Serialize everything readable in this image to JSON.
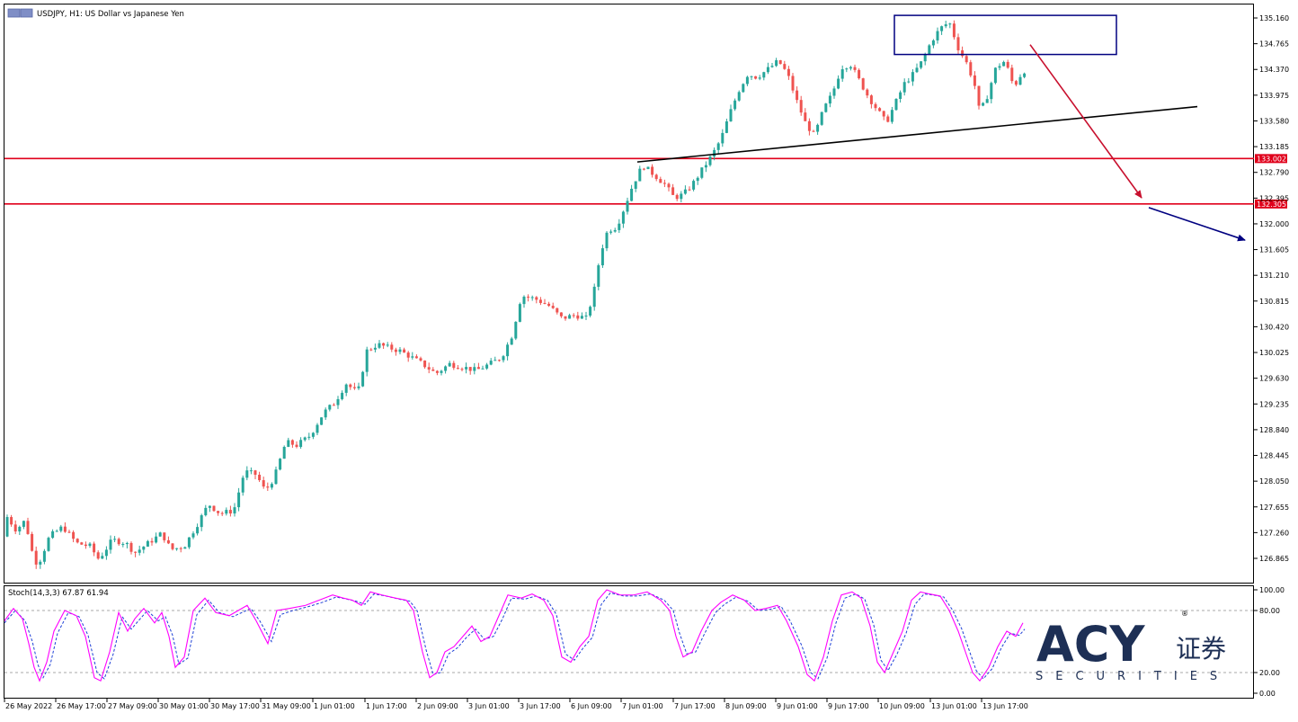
{
  "window": {
    "symbol_title": "USDJPY, H1:  US Dollar vs Japanese Yen",
    "indicator_title": "Stoch(14,3,3) 67.87 61.94"
  },
  "colors": {
    "bull": "#26a69a",
    "bear": "#ef5350",
    "level_line": "#e0001b",
    "trendline": "#000000",
    "box": "#000080",
    "arrow_down": "#c8102e",
    "arrow_right": "#000080",
    "stoch_main": "#ff00ff",
    "stoch_signal": "#1d3fd6",
    "logo": "#1d2f55"
  },
  "price_axis": {
    "labels": [
      "135.160",
      "134.765",
      "134.370",
      "133.975",
      "133.580",
      "133.185",
      "132.790",
      "132.395",
      "132.000",
      "131.605",
      "131.210",
      "130.815",
      "130.420",
      "130.025",
      "129.630",
      "129.235",
      "128.840",
      "128.445",
      "128.050",
      "127.655",
      "127.260",
      "126.865"
    ],
    "level_badges": [
      "133.002",
      "132.305"
    ]
  },
  "stoch_axis": {
    "labels": [
      "100.00",
      "80.00",
      "20.00",
      "0.00"
    ]
  },
  "time_axis": {
    "labels": [
      "26 May 2022",
      "26 May 17:00",
      "27 May 09:00",
      "30 May 01:00",
      "30 May 17:00",
      "31 May 09:00",
      "1 Jun 01:00",
      "1 Jun 17:00",
      "2 Jun 09:00",
      "3 Jun 01:00",
      "3 Jun 17:00",
      "6 Jun 09:00",
      "7 Jun 01:00",
      "7 Jun 17:00",
      "8 Jun 09:00",
      "9 Jun 01:00",
      "9 Jun 17:00",
      "10 Jun 09:00",
      "13 Jun 01:00",
      "13 Jun 17:00"
    ]
  },
  "logo": {
    "brand": "ACY",
    "cn": "证券",
    "sub": "SECURITIES",
    "reg": "®"
  },
  "chart_data": {
    "type": "candlestick",
    "symbol": "USDJPY",
    "timeframe": "H1",
    "title": "USDJPY, H1:  US Dollar vs Japanese Yen",
    "ylim": [
      126.6,
      135.3
    ],
    "y_ticks": [
      135.16,
      134.765,
      134.37,
      133.975,
      133.58,
      133.185,
      132.79,
      132.395,
      132.0,
      131.605,
      131.21,
      130.815,
      130.42,
      130.025,
      129.63,
      129.235,
      128.84,
      128.445,
      128.05,
      127.655,
      127.26,
      126.865
    ],
    "horizontal_levels": [
      133.002,
      132.305
    ],
    "price_path": [
      [
        0,
        127.2
      ],
      [
        8,
        127.5
      ],
      [
        18,
        127.3
      ],
      [
        28,
        127.45
      ],
      [
        36,
        126.95
      ],
      [
        42,
        126.75
      ],
      [
        55,
        127.2
      ],
      [
        70,
        127.35
      ],
      [
        85,
        127.1
      ],
      [
        100,
        127.05
      ],
      [
        110,
        126.85
      ],
      [
        125,
        127.15
      ],
      [
        140,
        127.1
      ],
      [
        150,
        126.95
      ],
      [
        165,
        127.1
      ],
      [
        180,
        127.25
      ],
      [
        190,
        127.0
      ],
      [
        205,
        127.05
      ],
      [
        220,
        127.4
      ],
      [
        232,
        127.7
      ],
      [
        245,
        127.55
      ],
      [
        260,
        127.6
      ],
      [
        272,
        128.2
      ],
      [
        285,
        128.15
      ],
      [
        295,
        127.9
      ],
      [
        305,
        128.1
      ],
      [
        318,
        128.65
      ],
      [
        330,
        128.6
      ],
      [
        345,
        128.75
      ],
      [
        360,
        129.1
      ],
      [
        372,
        129.25
      ],
      [
        385,
        129.55
      ],
      [
        398,
        129.4
      ],
      [
        408,
        130.05
      ],
      [
        420,
        130.15
      ],
      [
        432,
        130.1
      ],
      [
        445,
        130.05
      ],
      [
        458,
        129.95
      ],
      [
        470,
        129.85
      ],
      [
        485,
        129.7
      ],
      [
        500,
        129.85
      ],
      [
        515,
        129.8
      ],
      [
        530,
        129.75
      ],
      [
        545,
        129.85
      ],
      [
        558,
        129.95
      ],
      [
        570,
        130.3
      ],
      [
        580,
        130.9
      ],
      [
        595,
        130.85
      ],
      [
        610,
        130.75
      ],
      [
        625,
        130.55
      ],
      [
        640,
        130.6
      ],
      [
        652,
        130.55
      ],
      [
        660,
        130.9
      ],
      [
        668,
        131.55
      ],
      [
        676,
        131.9
      ],
      [
        686,
        131.95
      ],
      [
        696,
        132.3
      ],
      [
        704,
        132.6
      ],
      [
        715,
        132.9
      ],
      [
        728,
        132.75
      ],
      [
        740,
        132.6
      ],
      [
        750,
        132.4
      ],
      [
        760,
        132.45
      ],
      [
        770,
        132.6
      ],
      [
        782,
        132.85
      ],
      [
        792,
        133.05
      ],
      [
        802,
        133.3
      ],
      [
        812,
        133.7
      ],
      [
        822,
        134.05
      ],
      [
        832,
        134.3
      ],
      [
        842,
        134.25
      ],
      [
        852,
        134.35
      ],
      [
        866,
        134.5
      ],
      [
        876,
        134.3
      ],
      [
        886,
        133.9
      ],
      [
        896,
        133.55
      ],
      [
        906,
        133.35
      ],
      [
        916,
        133.75
      ],
      [
        926,
        134.0
      ],
      [
        936,
        134.4
      ],
      [
        946,
        134.45
      ],
      [
        956,
        134.2
      ],
      [
        966,
        133.95
      ],
      [
        976,
        133.75
      ],
      [
        986,
        133.55
      ],
      [
        996,
        133.85
      ],
      [
        1006,
        134.15
      ],
      [
        1016,
        134.3
      ],
      [
        1026,
        134.5
      ],
      [
        1036,
        134.8
      ],
      [
        1046,
        135.0
      ],
      [
        1056,
        135.1
      ],
      [
        1066,
        134.7
      ],
      [
        1076,
        134.45
      ],
      [
        1084,
        134.15
      ],
      [
        1090,
        133.7
      ],
      [
        1098,
        133.95
      ],
      [
        1108,
        134.4
      ],
      [
        1118,
        134.5
      ],
      [
        1128,
        134.1
      ],
      [
        1138,
        134.35
      ]
    ],
    "annotations": [
      {
        "type": "trendline",
        "from": [
          709,
          132.95
        ],
        "to": [
          1332,
          133.8
        ]
      },
      {
        "type": "box",
        "x": [
          995,
          1242
        ],
        "y": [
          134.6,
          135.2
        ]
      },
      {
        "type": "arrow",
        "direction": "down-right",
        "from": [
          1146,
          134.75
        ],
        "to": [
          1270,
          132.4
        ]
      },
      {
        "type": "arrow",
        "direction": "right",
        "from": [
          1278,
          132.25
        ],
        "to": [
          1385,
          131.75
        ]
      }
    ],
    "indicator": {
      "name": "Stoch(14,3,3)",
      "main": 67.87,
      "signal": 61.94,
      "ylim": [
        0,
        100
      ],
      "levels": [
        20,
        80
      ],
      "main_path": [
        [
          5,
          70
        ],
        [
          15,
          82
        ],
        [
          25,
          72
        ],
        [
          32,
          48
        ],
        [
          38,
          25
        ],
        [
          44,
          12
        ],
        [
          52,
          30
        ],
        [
          60,
          60
        ],
        [
          72,
          80
        ],
        [
          85,
          75
        ],
        [
          95,
          55
        ],
        [
          105,
          15
        ],
        [
          112,
          12
        ],
        [
          122,
          40
        ],
        [
          132,
          78
        ],
        [
          142,
          60
        ],
        [
          150,
          72
        ],
        [
          160,
          82
        ],
        [
          172,
          68
        ],
        [
          180,
          78
        ],
        [
          188,
          55
        ],
        [
          195,
          25
        ],
        [
          205,
          35
        ],
        [
          215,
          80
        ],
        [
          228,
          92
        ],
        [
          240,
          78
        ],
        [
          255,
          75
        ],
        [
          265,
          80
        ],
        [
          275,
          85
        ],
        [
          285,
          70
        ],
        [
          298,
          48
        ],
        [
          308,
          80
        ],
        [
          322,
          82
        ],
        [
          340,
          85
        ],
        [
          355,
          90
        ],
        [
          370,
          95
        ],
        [
          382,
          92
        ],
        [
          392,
          90
        ],
        [
          402,
          85
        ],
        [
          412,
          98
        ],
        [
          425,
          95
        ],
        [
          440,
          92
        ],
        [
          452,
          90
        ],
        [
          460,
          80
        ],
        [
          470,
          40
        ],
        [
          478,
          15
        ],
        [
          486,
          20
        ],
        [
          495,
          40
        ],
        [
          505,
          45
        ],
        [
          515,
          55
        ],
        [
          525,
          65
        ],
        [
          535,
          50
        ],
        [
          545,
          55
        ],
        [
          555,
          75
        ],
        [
          565,
          95
        ],
        [
          580,
          92
        ],
        [
          592,
          96
        ],
        [
          605,
          90
        ],
        [
          615,
          75
        ],
        [
          625,
          35
        ],
        [
          635,
          30
        ],
        [
          645,
          45
        ],
        [
          655,
          55
        ],
        [
          665,
          90
        ],
        [
          675,
          100
        ],
        [
          690,
          95
        ],
        [
          705,
          95
        ],
        [
          720,
          98
        ],
        [
          735,
          90
        ],
        [
          745,
          80
        ],
        [
          752,
          55
        ],
        [
          760,
          35
        ],
        [
          770,
          40
        ],
        [
          780,
          60
        ],
        [
          792,
          80
        ],
        [
          802,
          88
        ],
        [
          815,
          95
        ],
        [
          828,
          90
        ],
        [
          840,
          80
        ],
        [
          852,
          82
        ],
        [
          865,
          85
        ],
        [
          875,
          70
        ],
        [
          888,
          45
        ],
        [
          898,
          18
        ],
        [
          906,
          12
        ],
        [
          916,
          35
        ],
        [
          926,
          70
        ],
        [
          936,
          95
        ],
        [
          948,
          98
        ],
        [
          958,
          92
        ],
        [
          968,
          65
        ],
        [
          976,
          30
        ],
        [
          984,
          20
        ],
        [
          994,
          40
        ],
        [
          1004,
          60
        ],
        [
          1014,
          90
        ],
        [
          1024,
          98
        ],
        [
          1034,
          96
        ],
        [
          1046,
          94
        ],
        [
          1056,
          80
        ],
        [
          1066,
          60
        ],
        [
          1074,
          40
        ],
        [
          1082,
          20
        ],
        [
          1090,
          12
        ],
        [
          1100,
          25
        ],
        [
          1110,
          45
        ],
        [
          1120,
          60
        ],
        [
          1130,
          55
        ],
        [
          1138,
          68
        ]
      ],
      "signal_path": [
        [
          5,
          68
        ],
        [
          17,
          80
        ],
        [
          28,
          70
        ],
        [
          36,
          50
        ],
        [
          42,
          28
        ],
        [
          48,
          15
        ],
        [
          56,
          28
        ],
        [
          64,
          58
        ],
        [
          76,
          78
        ],
        [
          88,
          74
        ],
        [
          98,
          56
        ],
        [
          108,
          20
        ],
        [
          116,
          14
        ],
        [
          126,
          38
        ],
        [
          136,
          74
        ],
        [
          146,
          62
        ],
        [
          154,
          70
        ],
        [
          164,
          80
        ],
        [
          176,
          70
        ],
        [
          184,
          74
        ],
        [
          192,
          56
        ],
        [
          199,
          28
        ],
        [
          209,
          34
        ],
        [
          219,
          76
        ],
        [
          232,
          90
        ],
        [
          244,
          78
        ],
        [
          259,
          74
        ],
        [
          269,
          78
        ],
        [
          279,
          82
        ],
        [
          289,
          70
        ],
        [
          302,
          50
        ],
        [
          312,
          76
        ],
        [
          326,
          80
        ],
        [
          344,
          84
        ],
        [
          359,
          88
        ],
        [
          374,
          93
        ],
        [
          386,
          91
        ],
        [
          396,
          89
        ],
        [
          406,
          86
        ],
        [
          416,
          96
        ],
        [
          429,
          94
        ],
        [
          444,
          91
        ],
        [
          456,
          89
        ],
        [
          464,
          80
        ],
        [
          474,
          42
        ],
        [
          482,
          18
        ],
        [
          490,
          20
        ],
        [
          499,
          38
        ],
        [
          509,
          44
        ],
        [
          519,
          54
        ],
        [
          529,
          62
        ],
        [
          539,
          52
        ],
        [
          549,
          55
        ],
        [
          559,
          72
        ],
        [
          569,
          92
        ],
        [
          584,
          91
        ],
        [
          596,
          94
        ],
        [
          609,
          90
        ],
        [
          619,
          76
        ],
        [
          629,
          38
        ],
        [
          639,
          32
        ],
        [
          649,
          44
        ],
        [
          659,
          54
        ],
        [
          669,
          86
        ],
        [
          679,
          97
        ],
        [
          694,
          94
        ],
        [
          709,
          94
        ],
        [
          724,
          96
        ],
        [
          739,
          90
        ],
        [
          749,
          80
        ],
        [
          756,
          58
        ],
        [
          764,
          38
        ],
        [
          774,
          40
        ],
        [
          784,
          58
        ],
        [
          796,
          78
        ],
        [
          806,
          86
        ],
        [
          819,
          93
        ],
        [
          832,
          89
        ],
        [
          844,
          80
        ],
        [
          856,
          81
        ],
        [
          869,
          84
        ],
        [
          879,
          70
        ],
        [
          892,
          46
        ],
        [
          902,
          20
        ],
        [
          910,
          14
        ],
        [
          920,
          34
        ],
        [
          930,
          68
        ],
        [
          940,
          92
        ],
        [
          952,
          96
        ],
        [
          962,
          91
        ],
        [
          972,
          66
        ],
        [
          980,
          32
        ],
        [
          988,
          22
        ],
        [
          998,
          38
        ],
        [
          1008,
          58
        ],
        [
          1018,
          86
        ],
        [
          1028,
          96
        ],
        [
          1038,
          95
        ],
        [
          1050,
          93
        ],
        [
          1060,
          80
        ],
        [
          1070,
          62
        ],
        [
          1078,
          42
        ],
        [
          1086,
          22
        ],
        [
          1094,
          14
        ],
        [
          1104,
          24
        ],
        [
          1114,
          44
        ],
        [
          1124,
          58
        ],
        [
          1134,
          56
        ],
        [
          1140,
          62
        ]
      ]
    }
  }
}
